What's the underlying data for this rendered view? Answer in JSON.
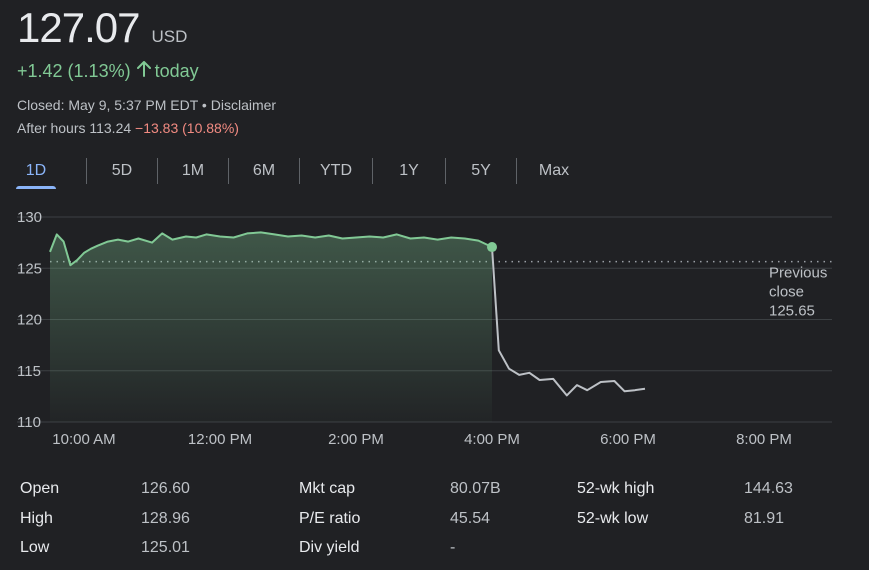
{
  "quote": {
    "price": "127.07",
    "currency": "USD",
    "change": "+1.42 (1.13%)",
    "change_period": "today",
    "closed_text": "Closed: May 9, 5:37 PM EDT",
    "separator": " • ",
    "disclaimer": "Disclaimer",
    "after_hours_label": "After hours 113.24",
    "after_hours_change": "−13.83 (10.88%)"
  },
  "tabs": [
    {
      "label": "1D",
      "active": true
    },
    {
      "label": "5D"
    },
    {
      "label": "1M"
    },
    {
      "label": "6M"
    },
    {
      "label": "YTD"
    },
    {
      "label": "1Y"
    },
    {
      "label": "5Y"
    },
    {
      "label": "Max"
    }
  ],
  "colors": {
    "up": "#81c995",
    "down": "#f28b82",
    "accent": "#8ab4f8",
    "after_hours_line": "#bdc1c6"
  },
  "chart_data": {
    "type": "line",
    "ylim": [
      110,
      131
    ],
    "yticks": [
      130,
      125,
      120,
      115,
      110
    ],
    "x_hours_range": [
      9.5,
      21.0
    ],
    "xticks": [
      {
        "label": "10:00 AM",
        "hour": 10
      },
      {
        "label": "12:00 PM",
        "hour": 12
      },
      {
        "label": "2:00 PM",
        "hour": 14
      },
      {
        "label": "4:00 PM",
        "hour": 16
      },
      {
        "label": "6:00 PM",
        "hour": 18
      },
      {
        "label": "8:00 PM",
        "hour": 20
      }
    ],
    "previous_close": {
      "value": 125.65,
      "label_line1": "Previous",
      "label_line2": "close",
      "value_label": "125.65"
    },
    "series": [
      {
        "session": "regular",
        "x": [
          9.5,
          9.6,
          9.7,
          9.8,
          9.9,
          10.0,
          10.1,
          10.2,
          10.35,
          10.5,
          10.65,
          10.8,
          11.0,
          11.15,
          11.3,
          11.5,
          11.65,
          11.8,
          12.0,
          12.2,
          12.4,
          12.6,
          12.8,
          13.0,
          13.2,
          13.4,
          13.6,
          13.8,
          14.0,
          14.2,
          14.4,
          14.6,
          14.8,
          15.0,
          15.2,
          15.4,
          15.6,
          15.8,
          16.0
        ],
        "y": [
          126.6,
          128.3,
          127.6,
          125.3,
          125.8,
          126.5,
          126.9,
          127.2,
          127.6,
          127.8,
          127.6,
          127.9,
          127.5,
          128.4,
          127.8,
          128.1,
          128.0,
          128.3,
          128.1,
          128.0,
          128.4,
          128.5,
          128.3,
          128.1,
          128.2,
          128.0,
          128.2,
          127.9,
          128.0,
          128.1,
          128.0,
          128.3,
          127.9,
          128.0,
          127.8,
          128.0,
          127.9,
          127.7,
          127.07
        ]
      },
      {
        "session": "after-hours",
        "x": [
          16.0,
          16.1,
          16.25,
          16.4,
          16.55,
          16.7,
          16.9,
          17.1,
          17.25,
          17.4,
          17.6,
          17.8,
          17.95,
          18.1,
          18.25
        ],
        "y": [
          127.07,
          117.0,
          115.2,
          114.6,
          114.8,
          114.1,
          114.2,
          112.6,
          113.6,
          113.1,
          113.9,
          114.0,
          113.0,
          113.1,
          113.24
        ]
      }
    ]
  },
  "stats": {
    "col1": [
      {
        "label": "Open",
        "value": "126.60"
      },
      {
        "label": "High",
        "value": "128.96"
      },
      {
        "label": "Low",
        "value": "125.01"
      }
    ],
    "col2": [
      {
        "label": "Mkt cap",
        "value": "80.07B"
      },
      {
        "label": "P/E ratio",
        "value": "45.54"
      },
      {
        "label": "Div yield",
        "value": "-"
      }
    ],
    "col3": [
      {
        "label": "52-wk high",
        "value": "144.63"
      },
      {
        "label": "52-wk low",
        "value": "81.91"
      }
    ]
  }
}
